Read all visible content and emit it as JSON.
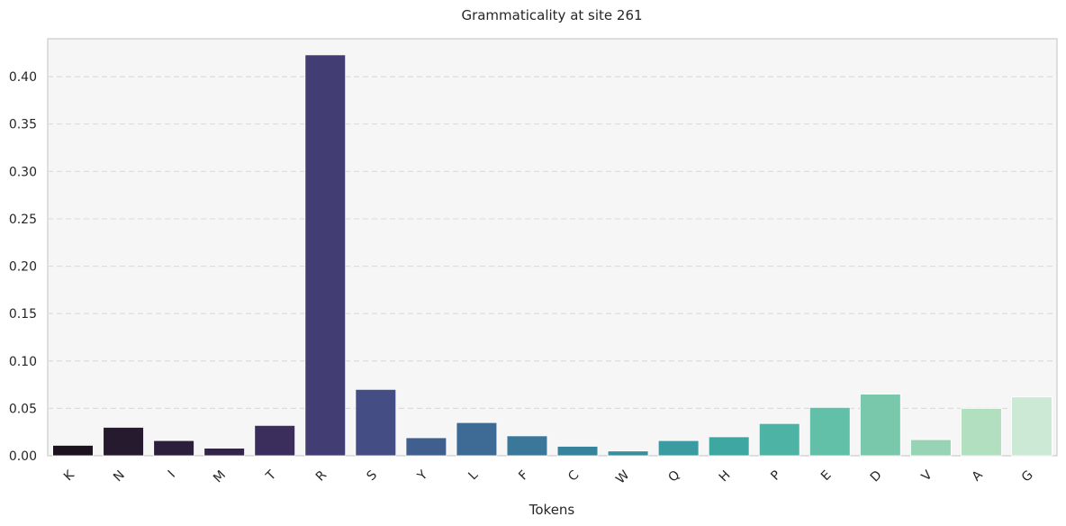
{
  "chart_data": {
    "type": "bar",
    "title": "Grammaticality at site 261",
    "xlabel": "Tokens",
    "ylabel": "",
    "ylim": [
      0,
      0.44
    ],
    "yticks": [
      "0.00",
      "0.05",
      "0.10",
      "0.15",
      "0.20",
      "0.25",
      "0.30",
      "0.35",
      "0.40"
    ],
    "grid": "horizontal dashed",
    "categories": [
      "K",
      "N",
      "I",
      "M",
      "T",
      "R",
      "S",
      "Y",
      "L",
      "F",
      "C",
      "W",
      "Q",
      "H",
      "P",
      "E",
      "D",
      "V",
      "A",
      "G"
    ],
    "values": [
      0.011,
      0.03,
      0.016,
      0.008,
      0.032,
      0.423,
      0.07,
      0.019,
      0.035,
      0.021,
      0.01,
      0.005,
      0.016,
      0.02,
      0.034,
      0.051,
      0.065,
      0.017,
      0.05,
      0.062
    ],
    "colors": [
      "#1c1220",
      "#261a2e",
      "#2c1f3b",
      "#33244a",
      "#3b2e5d",
      "#423d72",
      "#454d85",
      "#405e8e",
      "#3d6b95",
      "#3a7799",
      "#37839c",
      "#37909e",
      "#3a9ca0",
      "#3fa7a2",
      "#4db3a5",
      "#62bfa8",
      "#7ac8ac",
      "#97d3b5",
      "#b2dfbf",
      "#cbe9d4"
    ],
    "plot_background": "#f6f6f6",
    "axes_edge_color": "#cccccc"
  }
}
